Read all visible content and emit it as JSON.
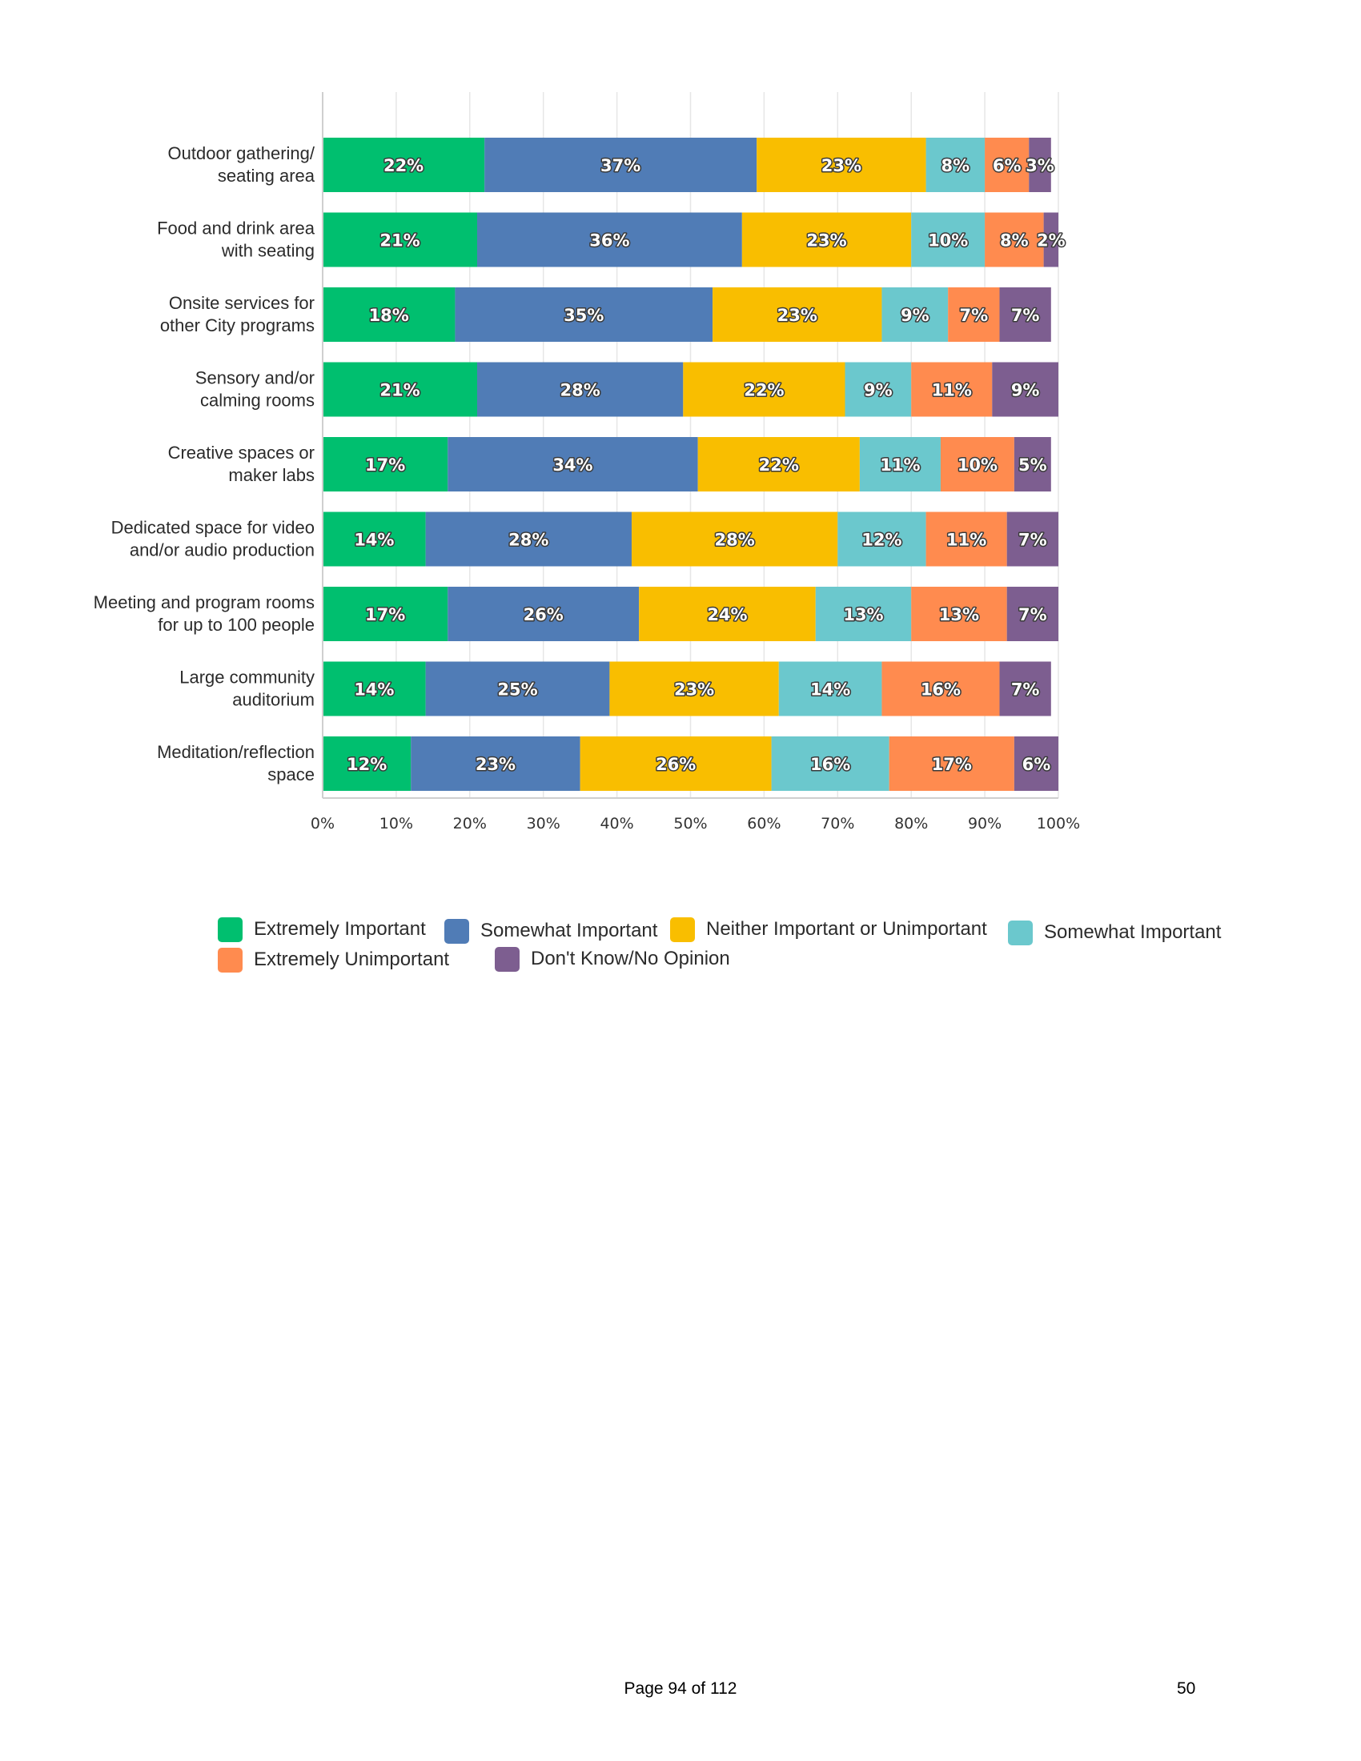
{
  "chart_data": {
    "type": "bar",
    "orientation": "horizontal",
    "stacked": true,
    "title": "",
    "xlabel": "",
    "ylabel": "",
    "xlim": [
      0,
      100
    ],
    "x_ticks": [
      "0%",
      "10%",
      "20%",
      "30%",
      "40%",
      "50%",
      "60%",
      "70%",
      "80%",
      "90%",
      "100%"
    ],
    "grid": true,
    "legend_position": "bottom",
    "categories": [
      [
        "Outdoor gathering/",
        "seating area"
      ],
      [
        "Food and drink area",
        "with seating"
      ],
      [
        "Onsite services for",
        "other City programs"
      ],
      [
        "Sensory and/or",
        "calming rooms"
      ],
      [
        "Creative spaces or",
        "maker labs"
      ],
      [
        "Dedicated space for video",
        "and/or audio production"
      ],
      [
        "Meeting and program rooms",
        "for up to 100 people"
      ],
      [
        "Large community",
        "auditorium"
      ],
      [
        "Meditation/reflection",
        "space"
      ]
    ],
    "series": [
      {
        "name": "Extremely Important",
        "color": "#00bf6f",
        "values": [
          22,
          21,
          18,
          21,
          17,
          14,
          17,
          14,
          12
        ]
      },
      {
        "name": "Somewhat Important",
        "color": "#507cb6",
        "values": [
          37,
          36,
          35,
          28,
          34,
          28,
          26,
          25,
          23
        ]
      },
      {
        "name": "Neither Important or Unimportant",
        "color": "#f9be00",
        "values": [
          23,
          23,
          23,
          22,
          22,
          28,
          24,
          23,
          26
        ]
      },
      {
        "name": "Somewhat Important",
        "color": "#6bc8cd",
        "values": [
          8,
          10,
          9,
          9,
          11,
          12,
          13,
          14,
          16
        ]
      },
      {
        "name": "Extremely Unimportant",
        "color": "#ff8b4f",
        "values": [
          6,
          8,
          7,
          11,
          10,
          11,
          13,
          16,
          17
        ]
      },
      {
        "name": "Don't Know/No Opinion",
        "color": "#7d5e90",
        "values": [
          3,
          2,
          7,
          9,
          5,
          7,
          7,
          7,
          6
        ]
      }
    ]
  },
  "footer": {
    "page_label": "Page 94 of 112",
    "page_number": "50"
  }
}
